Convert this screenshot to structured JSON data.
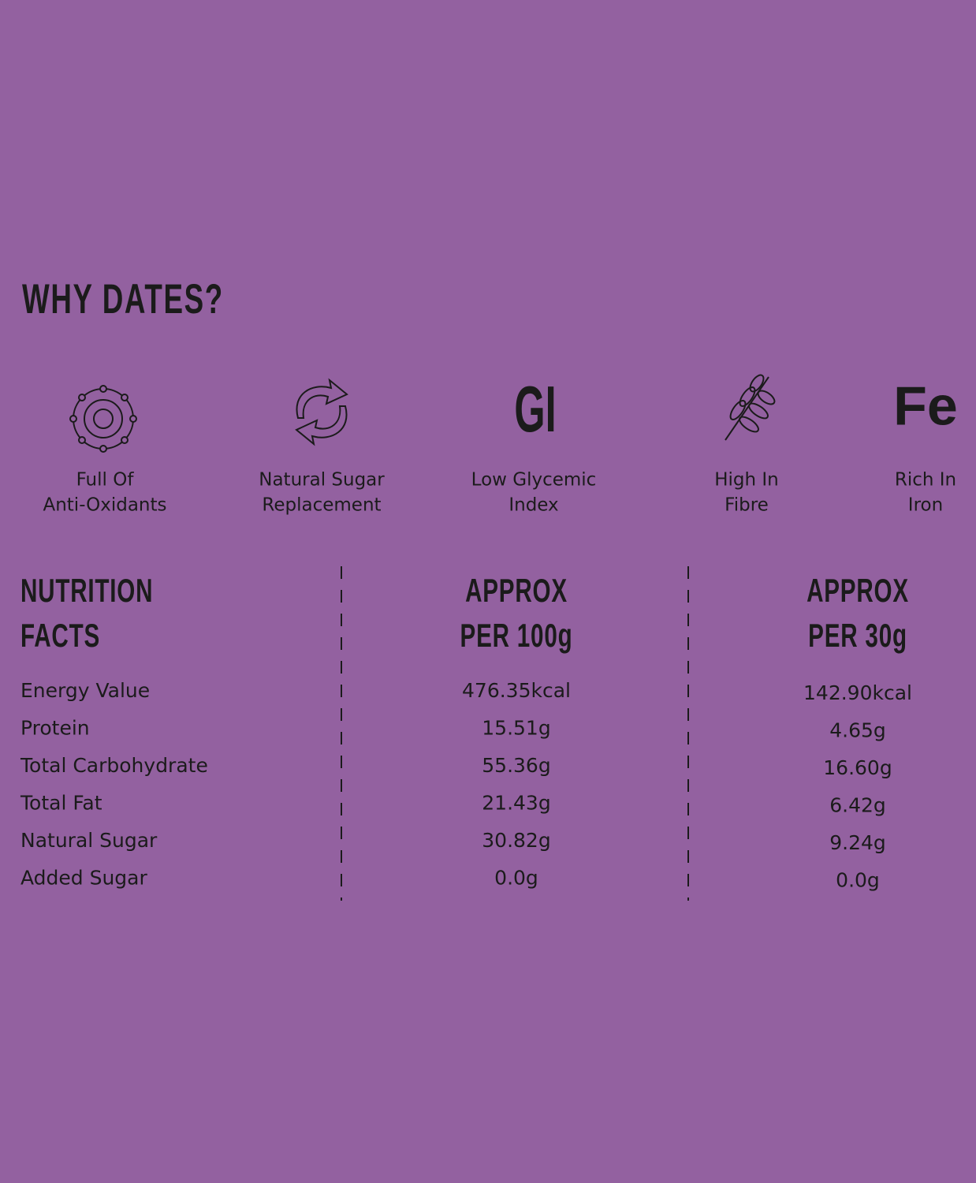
{
  "header": {
    "title": "WHY DATES?"
  },
  "features": [
    {
      "label_lines": [
        "Full Of",
        "Anti-Oxidants"
      ]
    },
    {
      "label_lines": [
        "Natural Sugar",
        "Replacement"
      ]
    },
    {
      "icon_text": "GI",
      "label_lines": [
        "Low Glycemic",
        "Index"
      ]
    },
    {
      "label_lines": [
        "High In",
        "Fibre"
      ]
    },
    {
      "icon_text": "Fe",
      "label_lines": [
        "Rich In",
        "Iron"
      ]
    }
  ],
  "table": {
    "header": [
      [
        "NUTRITION",
        "FACTS"
      ],
      [
        "APPROX",
        "PER 100g"
      ],
      [
        "APPROX",
        "PER 30g"
      ]
    ],
    "rows": [
      [
        "Energy Value",
        "476.35kcal",
        "142.90kcal"
      ],
      [
        "Protein",
        "15.51g",
        "4.65g"
      ],
      [
        "Total Carbohydrate",
        "55.36g",
        "16.60g"
      ],
      [
        "Total Fat",
        "21.43g",
        "6.42g"
      ],
      [
        "Natural Sugar",
        "30.82g",
        "9.24g"
      ],
      [
        "Added Sugar",
        "0.0g",
        "0.0g"
      ]
    ]
  }
}
